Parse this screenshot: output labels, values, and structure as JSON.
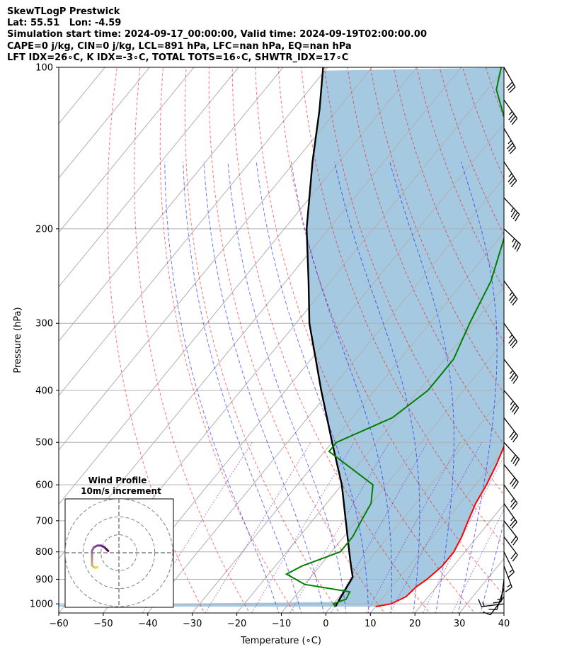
{
  "header": {
    "line1": "SkewTLogP Prestwick",
    "line2": "Lat: 55.51   Lon: -4.59",
    "line3": "Simulation start time: 2024-09-17_00:00:00, Valid time: 2024-09-19T02:00:00.00",
    "line4": "CAPE=0 j/kg, CIN=0 j/kg, LCL=891 hPa, LFC=nan hPa, EQ=nan hPa",
    "line5": "LFT IDX=26∘C, K IDX=-3∘C, TOTAL TOTS=16∘C, SHWTR_IDX=17∘C"
  },
  "chart_data": {
    "type": "skew-t log-p",
    "xlabel": "Temperature (∘C)",
    "ylabel": "Pressure (hPa)",
    "xlim": [
      -60,
      40
    ],
    "ylim": [
      1040,
      100
    ],
    "x_ticks": [
      -60,
      -50,
      -40,
      -30,
      -20,
      -10,
      0,
      10,
      20,
      30,
      40
    ],
    "y_ticks": [
      1000,
      900,
      800,
      700,
      600,
      500,
      400,
      300,
      200,
      100
    ],
    "grid": true,
    "series": [
      {
        "kind": "temperature",
        "color": "#ff0000",
        "points": [
          [
            1012,
            10
          ],
          [
            1000,
            13
          ],
          [
            970,
            15
          ],
          [
            930,
            15.5
          ],
          [
            900,
            16.5
          ],
          [
            850,
            17.5
          ],
          [
            800,
            17.5
          ],
          [
            750,
            16.5
          ],
          [
            700,
            15
          ],
          [
            650,
            13.5
          ],
          [
            600,
            12.5
          ],
          [
            550,
            11
          ],
          [
            500,
            9
          ],
          [
            450,
            6
          ],
          [
            400,
            2.5
          ],
          [
            350,
            -3
          ],
          [
            300,
            -10
          ],
          [
            250,
            -17
          ],
          [
            200,
            -27
          ],
          [
            180,
            -32
          ],
          [
            160,
            -37
          ],
          [
            150,
            -40
          ],
          [
            135,
            -45
          ],
          [
            120,
            -50
          ],
          [
            110,
            -54
          ],
          [
            100,
            -57
          ]
        ]
      },
      {
        "kind": "dewpoint",
        "color": "#008000",
        "points": [
          [
            1012,
            1
          ],
          [
            1000,
            0
          ],
          [
            980,
            2
          ],
          [
            950,
            1.5
          ],
          [
            920,
            -10
          ],
          [
            880,
            -16
          ],
          [
            850,
            -14
          ],
          [
            800,
            -8
          ],
          [
            750,
            -8
          ],
          [
            700,
            -9
          ],
          [
            650,
            -10
          ],
          [
            600,
            -13
          ],
          [
            520,
            -29
          ],
          [
            500,
            -29
          ],
          [
            450,
            -21
          ],
          [
            400,
            -18
          ],
          [
            350,
            -18
          ],
          [
            300,
            -21
          ],
          [
            250,
            -24
          ],
          [
            200,
            -30
          ],
          [
            180,
            -33
          ],
          [
            160,
            -37
          ],
          [
            150,
            -40
          ],
          [
            135,
            -46
          ],
          [
            120,
            -53
          ],
          [
            110,
            -58
          ],
          [
            100,
            -61
          ]
        ]
      },
      {
        "kind": "parcel",
        "color": "#000000",
        "points": [
          [
            1012,
            1
          ],
          [
            891,
            -0.6
          ],
          [
            1000,
            0.8
          ],
          [
            850,
            -3
          ],
          [
            800,
            -6
          ],
          [
            700,
            -12.5
          ],
          [
            600,
            -20
          ],
          [
            500,
            -30
          ],
          [
            400,
            -42
          ],
          [
            300,
            -57
          ],
          [
            250,
            -65
          ],
          [
            200,
            -75
          ],
          [
            150,
            -86
          ],
          [
            120,
            -94
          ],
          [
            100,
            -101
          ]
        ]
      }
    ],
    "wind_barbs": [
      {
        "p": 1000,
        "u": -8,
        "v": -1
      },
      {
        "p": 970,
        "u": -3,
        "v": -4
      },
      {
        "p": 935,
        "u": -2,
        "v": -6
      },
      {
        "p": 900,
        "u": -1,
        "v": -8
      },
      {
        "p": 850,
        "u": 3,
        "v": -8
      },
      {
        "p": 800,
        "u": 4,
        "v": -8
      },
      {
        "p": 750,
        "u": 6,
        "v": -8
      },
      {
        "p": 700,
        "u": 7,
        "v": -9
      },
      {
        "p": 650,
        "u": 7,
        "v": -10
      },
      {
        "p": 600,
        "u": 8,
        "v": -11
      },
      {
        "p": 550,
        "u": 9,
        "v": -11
      },
      {
        "p": 500,
        "u": 11,
        "v": -12
      },
      {
        "p": 450,
        "u": 10,
        "v": -13
      },
      {
        "p": 400,
        "u": 11,
        "v": -13
      },
      {
        "p": 350,
        "u": 11,
        "v": -14
      },
      {
        "p": 300,
        "u": 10,
        "v": -14
      },
      {
        "p": 250,
        "u": 11,
        "v": -15
      },
      {
        "p": 200,
        "u": 14,
        "v": -13
      },
      {
        "p": 175,
        "u": 13,
        "v": -14
      },
      {
        "p": 150,
        "u": 10,
        "v": -15
      },
      {
        "p": 130,
        "u": 9,
        "v": -15
      },
      {
        "p": 115,
        "u": 10,
        "v": -14
      },
      {
        "p": 100,
        "u": 8,
        "v": -14
      }
    ],
    "inset": {
      "title_line1": "Wind Profile",
      "title_line2": "10m/s increment",
      "points": [
        [
          -3,
          0.5
        ],
        [
          -3.5,
          1
        ],
        [
          -4,
          1.5
        ],
        [
          -5,
          2
        ],
        [
          -6,
          2
        ],
        [
          -7,
          1.5
        ],
        [
          -7.5,
          0.5
        ],
        [
          -7.5,
          -0.5
        ],
        [
          -7.5,
          -1.5
        ],
        [
          -7.5,
          -2.5
        ],
        [
          -7.5,
          -3.5
        ],
        [
          -7,
          -4
        ],
        [
          -6.5,
          -4.2
        ],
        [
          -6,
          -4
        ]
      ]
    }
  }
}
